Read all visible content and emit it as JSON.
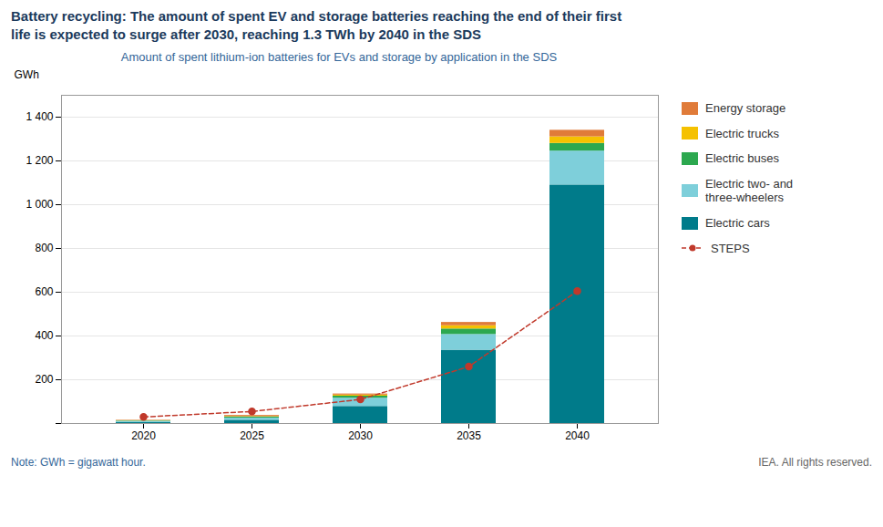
{
  "chart_data": {
    "type": "bar",
    "stacked": true,
    "title": "Battery recycling: The amount of spent EV and storage batteries reaching the end of their first\nlife is expected to surge after 2030, reaching 1.3 TWh by 2040 in the SDS",
    "subtitle": "Amount of spent lithium-ion batteries for EVs and storage by application in the SDS",
    "ylabel": "GWh",
    "categories": [
      2020,
      2025,
      2030,
      2035,
      2040
    ],
    "series": [
      {
        "name": "Electric cars",
        "color": "#007B8A",
        "values": [
          5,
          15,
          78,
          335,
          1090
        ]
      },
      {
        "name": "Electric two- and\nthree-wheelers",
        "color": "#7ECFDA",
        "values": [
          5,
          10,
          38,
          72,
          155
        ]
      },
      {
        "name": "Electric buses",
        "color": "#2CA84F",
        "values": [
          2,
          5,
          9,
          25,
          35
        ]
      },
      {
        "name": "Electric trucks",
        "color": "#F5C100",
        "values": [
          1,
          2,
          5,
          15,
          30
        ]
      },
      {
        "name": "Energy storage",
        "color": "#E07B39",
        "values": [
          2,
          5,
          5,
          15,
          30
        ]
      },
      {
        "name": "STEPS",
        "type": "line",
        "color": "#C0392B",
        "line_style": "dashed",
        "marker": "circle",
        "values": [
          30,
          55,
          110,
          260,
          605
        ]
      }
    ],
    "ylim": [
      0,
      1500
    ],
    "yticks": [
      {
        "value": 0,
        "label": ""
      },
      200,
      400,
      600,
      800,
      {
        "value": 1000,
        "label": "1 000"
      },
      {
        "value": 1200,
        "label": "1 200"
      },
      {
        "value": 1400,
        "label": "1 400"
      }
    ],
    "grid": true,
    "legend": "right",
    "annotations": [
      "Note: GWh = gigawatt hour.",
      "IEA. All rights reserved."
    ]
  }
}
